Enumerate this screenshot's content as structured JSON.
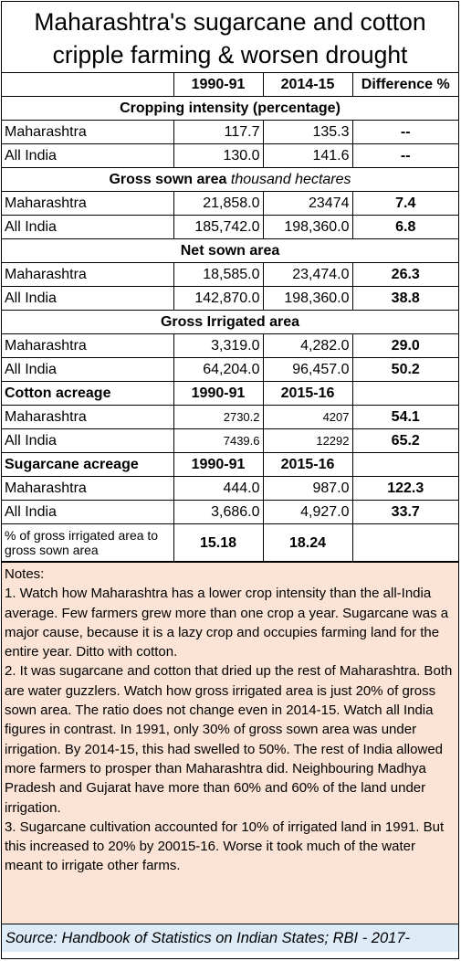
{
  "title": {
    "line1": "Maharashtra's sugarcane and cotton",
    "line2": "cripple farming & worsen drought"
  },
  "header": {
    "blank": "",
    "col1": "1990-91",
    "col2": "2014-15",
    "col3": "Difference %"
  },
  "sections": {
    "cropping": {
      "title": "Cropping intensity (percentage)",
      "rows": [
        {
          "label": "Maharashtra",
          "v1": "117.7",
          "v2": "135.3",
          "diff": "--"
        },
        {
          "label": "All India",
          "v1": "130.0",
          "v2": "141.6",
          "diff": "--"
        }
      ]
    },
    "gross_sown": {
      "title": "Gross sown area",
      "title_unit": "thousand hectares",
      "rows": [
        {
          "label": "Maharashtra",
          "v1": "21,858.0",
          "v2": "23474",
          "diff": "7.4"
        },
        {
          "label": "All India",
          "v1": "185,742.0",
          "v2": "198,360.0",
          "diff": "6.8"
        }
      ]
    },
    "net_sown": {
      "title": "Net sown area",
      "rows": [
        {
          "label": "Maharashtra",
          "v1": "18,585.0",
          "v2": "23,474.0",
          "diff": "26.3"
        },
        {
          "label": "All India",
          "v1": "142,870.0",
          "v2": "198,360.0",
          "diff": "38.8"
        }
      ]
    },
    "gross_irrigated": {
      "title": "Gross Irrigated area",
      "rows": [
        {
          "label": "Maharashtra",
          "v1": "3,319.0",
          "v2": "4,282.0",
          "diff": "29.0"
        },
        {
          "label": "All India",
          "v1": "64,204.0",
          "v2": "96,457.0",
          "diff": "50.2"
        }
      ]
    },
    "cotton": {
      "title": "Cotton acreage",
      "col1": "1990-91",
      "col2": "2015-16",
      "rows": [
        {
          "label": "Maharashtra",
          "v1": "2730.2",
          "v2": "4207",
          "diff": "54.1"
        },
        {
          "label": "All India",
          "v1": "7439.6",
          "v2": "12292",
          "diff": "65.2"
        }
      ]
    },
    "sugarcane": {
      "title": "Sugarcane acreage",
      "col1": "1990-91",
      "col2": "2015-16",
      "rows": [
        {
          "label": "Maharashtra",
          "v1": "444.0",
          "v2": "987.0",
          "diff": "122.3"
        },
        {
          "label": "All India",
          "v1": "3,686.0",
          "v2": "4,927.0",
          "diff": "33.7"
        }
      ]
    },
    "pct_row": {
      "label": "% of gross irrigated area to gross sown area",
      "v1": "15.18",
      "v2": "18.24",
      "diff": ""
    }
  },
  "notes": {
    "heading": "Notes:",
    "n1": "1. Watch how Maharashtra has a lower crop intensity than the all-India average.  Few farmers grew more than one crop a year. Sugarcane was a major cause, because it is a lazy crop and occupies farming land for the entire year. Ditto with cotton.",
    "n2": "2. It was sugarcane and cotton that dried up the rest of Maharashtra.  Both are water guzzlers. Watch how gross irrigated area is just 20% of gross sown area.  The ratio does not change even in 2014-15.  Watch all India figures in contrast.  In 1991, only 30% of gross sown area was under irrigation.  By 2014-15, this had swelled to 50%.  The rest of India allowed more farmers to prosper than Maharashtra did.  Neighbouring Madhya Pradesh and Gujarat have more than 60% and 60% of the land under irrigation.",
    "n3": "3. Sugarcane cultivation accounted for 10% of irrigated land in 1991.  But this increased to 20% by 20015-16.  Worse it took much of the water meant to irrigate other farms."
  },
  "source": "Source: Handbook of Statistics on Indian States; RBI - 2017-"
}
